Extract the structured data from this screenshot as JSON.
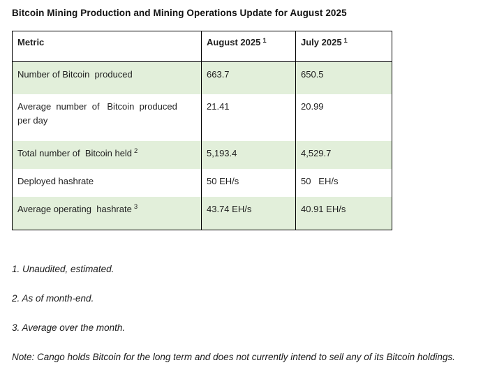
{
  "title": "Bitcoin Mining Production and Mining Operations Update for August 2025",
  "table": {
    "header": [
      {
        "label": "Metric",
        "sup": ""
      },
      {
        "label": "August 2025",
        "sup": "1"
      },
      {
        "label": "July 2025",
        "sup": "1"
      }
    ],
    "rows": [
      {
        "metric": "Number of Bitcoin  produced",
        "sup": "",
        "aug": "663.7",
        "jul": "650.5"
      },
      {
        "metric": "Average  number  of   Bitcoin  produced\nper day",
        "sup": "",
        "aug": "21.41",
        "jul": "20.99"
      },
      {
        "metric": "Total number of  Bitcoin held",
        "sup": "2",
        "aug": "5,193.4",
        "jul": "4,529.7"
      },
      {
        "metric": "Deployed hashrate",
        "sup": "",
        "aug": "50 EH/s",
        "jul": "50   EH/s"
      },
      {
        "metric": "Average operating  hashrate",
        "sup": "3",
        "aug": "43.74 EH/s",
        "jul": "40.91 EH/s"
      }
    ]
  },
  "footnotes": [
    "1. Unaudited, estimated.",
    "2. As of month-end.",
    "3. Average over the month.",
    "Note: Cango holds Bitcoin for the long term and does not currently intend to sell any of its Bitcoin holdings."
  ],
  "colors": {
    "row_alternate_green": "#e2efda",
    "table_border": "#000000",
    "text": "#1a1a1a"
  }
}
